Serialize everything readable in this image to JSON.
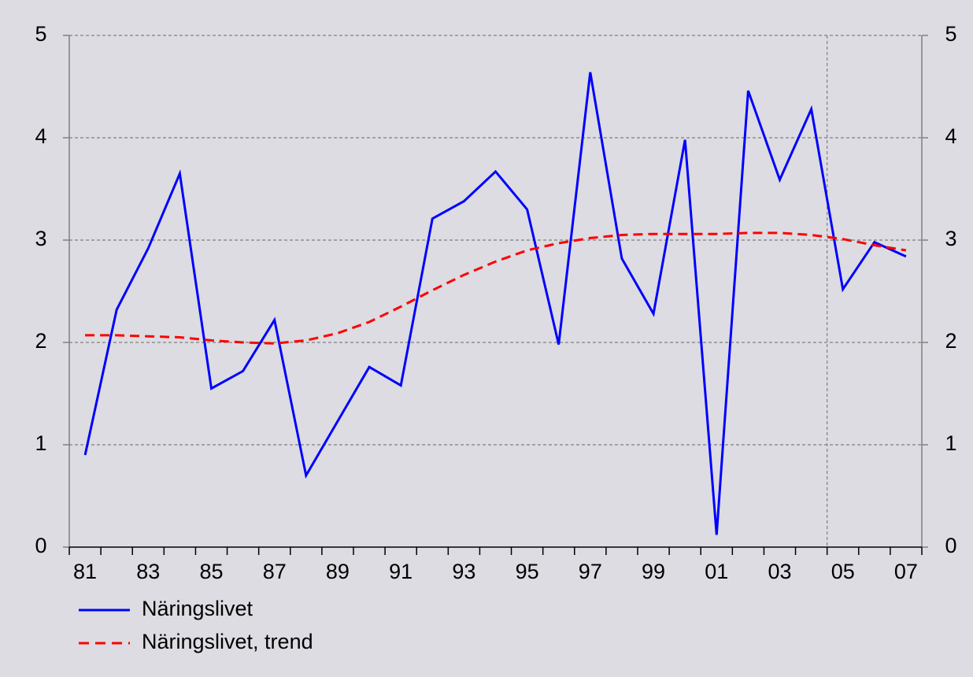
{
  "chart_data": {
    "type": "line",
    "categories": [
      "81",
      null,
      "83",
      null,
      "85",
      null,
      "87",
      null,
      "89",
      null,
      "91",
      null,
      "93",
      null,
      "95",
      null,
      "97",
      null,
      "99",
      null,
      "01",
      null,
      "03",
      null,
      "05",
      null,
      "07"
    ],
    "series": [
      {
        "name": "Näringslivet",
        "color": "#0000ff",
        "dash": false,
        "values": [
          0.9,
          2.32,
          2.92,
          3.65,
          1.55,
          1.72,
          2.22,
          0.7,
          1.23,
          1.76,
          1.58,
          3.21,
          3.38,
          3.67,
          3.3,
          1.98,
          4.64,
          2.82,
          2.28,
          3.98,
          0.12,
          4.46,
          3.59,
          4.28,
          2.52,
          2.98,
          2.84
        ]
      },
      {
        "name": "Näringslivet, trend",
        "color": "#ff0000",
        "dash": true,
        "values": [
          2.07,
          2.07,
          2.06,
          2.05,
          2.02,
          2.0,
          1.99,
          2.02,
          2.09,
          2.2,
          2.35,
          2.51,
          2.66,
          2.79,
          2.9,
          2.97,
          3.02,
          3.05,
          3.06,
          3.06,
          3.06,
          3.07,
          3.07,
          3.05,
          3.01,
          2.95,
          2.9
        ]
      }
    ],
    "ylim": [
      0,
      5
    ],
    "yticks": [
      0,
      1,
      2,
      3,
      4,
      5
    ],
    "y2lim": [
      0,
      5
    ],
    "y2ticks": [
      0,
      1,
      2,
      3,
      4,
      5
    ],
    "grid": true,
    "legend": "bottom-left"
  }
}
